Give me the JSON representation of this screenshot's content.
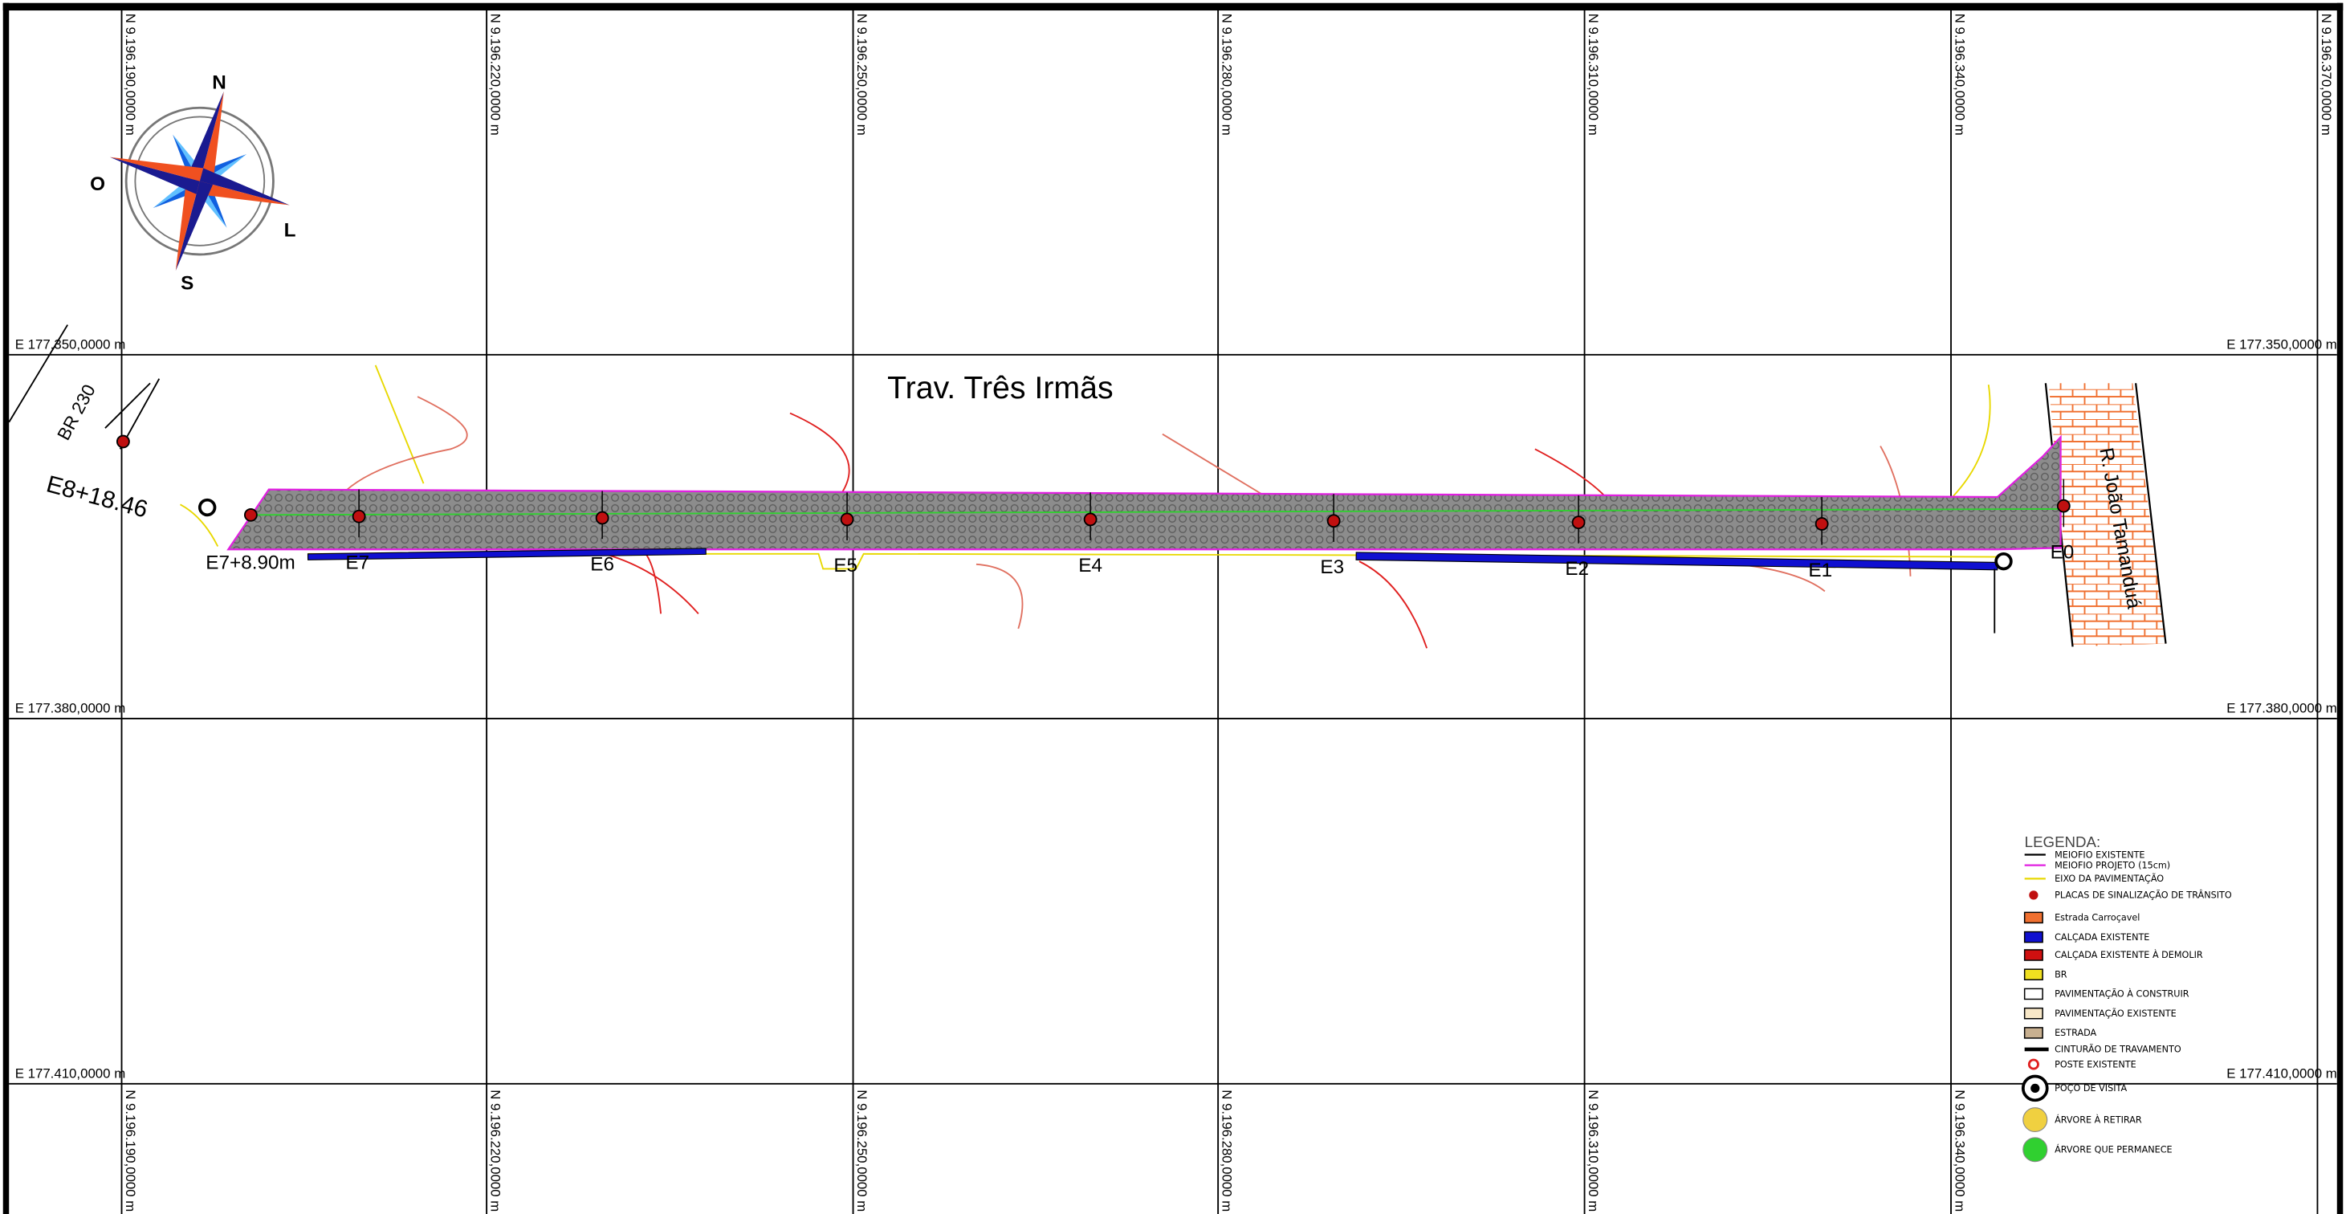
{
  "grid": {
    "northings": [
      "N 9.196.190,0000 m",
      "N 9.196.220,0000 m",
      "N 9.196.250,0000 m",
      "N 9.196.280,0000 m",
      "N 9.196.310,0000 m",
      "N 9.196.340,0000 m",
      "N 9.196.370,0000 m"
    ],
    "eastings": [
      "E 177.350,0000 m",
      "E 177.380,0000 m",
      "E 177.410,0000 m"
    ]
  },
  "compass": {
    "west": "O",
    "north": "N",
    "south": "S",
    "east": "L"
  },
  "streets": {
    "main": "Trav. Três Irmãs",
    "cross": "R. João Tamanduá",
    "highway": "BR 230"
  },
  "stations": [
    "E0",
    "E1",
    "E2",
    "E3",
    "E4",
    "E5",
    "E6",
    "E7"
  ],
  "chainages": [
    "E7+8.90m",
    "E8+18.46"
  ],
  "legend": {
    "title": "LEGENDA:",
    "items": [
      "MEIOFIO EXISTENTE",
      "MEIOFIO PROJETO (15cm)",
      "EIXO DA PAVIMENTAÇÃO",
      "PLACAS DE SINALIZAÇÃO DE TRÂNSITO",
      "Estrada Carroçavel",
      "CALÇADA EXISTENTE",
      "CALÇADA EXISTENTE À DEMOLIR",
      "BR",
      "PAVIMENTAÇÃO À CONSTRUIR",
      "PAVIMENTAÇÃO EXISTENTE",
      "ESTRADA",
      "CINTURÃO DE TRAVAMENTO",
      "POSTE EXISTENTE",
      "POÇO DE VISITA",
      "ÁRVORE À RETIRAR",
      "ÁRVORE QUE PERMANECE"
    ]
  }
}
